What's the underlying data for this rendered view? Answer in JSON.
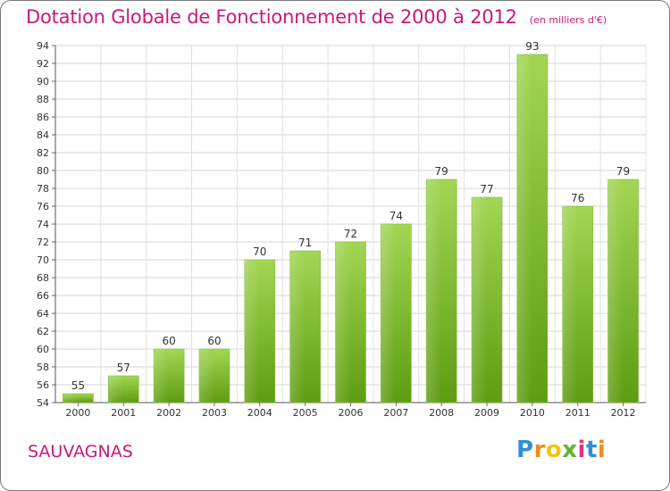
{
  "header": {
    "title": "Dotation Globale de Fonctionnement de 2000 à 2012",
    "subtitle": "(en milliers d'€)"
  },
  "footer": {
    "commune": "SAUVAGNAS",
    "logo_text": "Proxiti"
  },
  "colors": {
    "accent": "#c8197a",
    "bar_top": "#9fd44f",
    "bar_bottom": "#5f9e12"
  },
  "chart_data": {
    "type": "bar",
    "title": "Dotation Globale de Fonctionnement de 2000 à 2012",
    "subtitle": "(en milliers d'€)",
    "categories": [
      "2000",
      "2001",
      "2002",
      "2003",
      "2004",
      "2005",
      "2006",
      "2007",
      "2008",
      "2009",
      "2010",
      "2011",
      "2012"
    ],
    "values": [
      55,
      57,
      60,
      60,
      70,
      71,
      72,
      74,
      79,
      77,
      93,
      76,
      79
    ],
    "ylim": [
      54,
      94
    ],
    "yticks": [
      54,
      56,
      58,
      60,
      62,
      64,
      66,
      68,
      70,
      72,
      74,
      76,
      78,
      80,
      82,
      84,
      86,
      88,
      90,
      92,
      94
    ],
    "grid": true,
    "legend": "none"
  }
}
